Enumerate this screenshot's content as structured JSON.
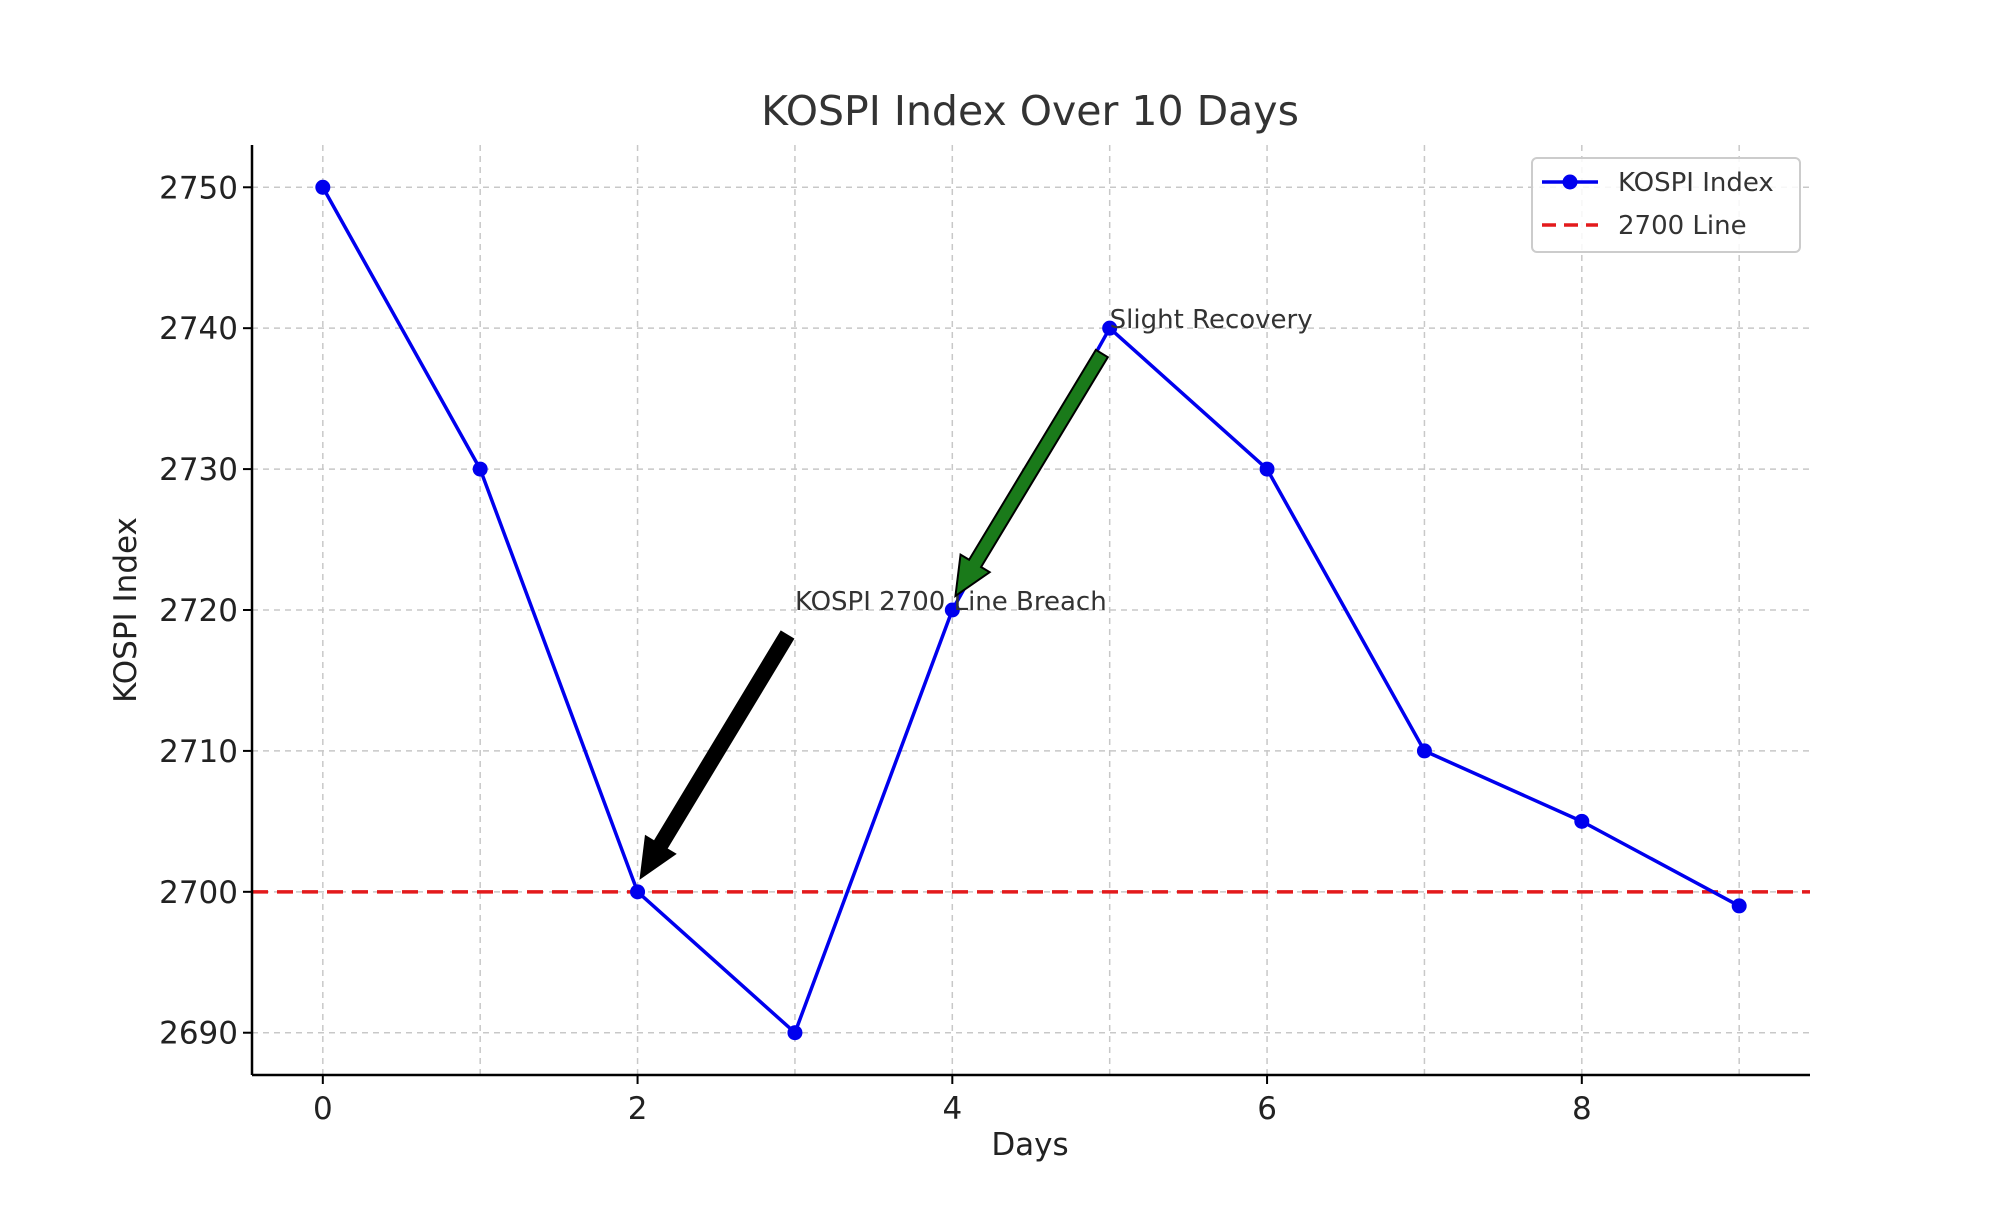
{
  "chart_data": {
    "type": "line",
    "title": "KOSPI Index Over 10 Days",
    "xlabel": "Days",
    "ylabel": "KOSPI Index",
    "x": [
      0,
      1,
      2,
      3,
      4,
      5,
      6,
      7,
      8,
      9
    ],
    "series": [
      {
        "name": "KOSPI Index",
        "values": [
          2750,
          2730,
          2700,
          2690,
          2720,
          2740,
          2730,
          2710,
          2705,
          2699
        ],
        "color": "#0000ee",
        "style": "solid",
        "marker": "circle"
      }
    ],
    "reference_lines": [
      {
        "name": "2700 Line",
        "y": 2700,
        "color": "#e31a1c",
        "style": "dashed"
      }
    ],
    "xlim": [
      -0.45,
      9.45
    ],
    "ylim": [
      2687,
      2753
    ],
    "xticks": [
      "0",
      "2",
      "4",
      "6",
      "8"
    ],
    "xtick_values": [
      0,
      2,
      4,
      6,
      8
    ],
    "yticks": [
      "2690",
      "2700",
      "2710",
      "2720",
      "2730",
      "2740",
      "2750"
    ],
    "ytick_values": [
      2690,
      2700,
      2710,
      2720,
      2730,
      2740,
      2750
    ],
    "grid": true,
    "legend": {
      "placement": "top-right",
      "entries": [
        "KOSPI Index",
        "2700 Line"
      ]
    },
    "annotations": [
      {
        "text": "KOSPI 2700 Line Breach",
        "text_x": 3,
        "text_y": 2720,
        "arrow_from": [
          2.95,
          2718.2
        ],
        "arrow_to": [
          2.02,
          2701
        ],
        "arrow_color": "#000000"
      },
      {
        "text": "Slight Recovery",
        "text_x": 5,
        "text_y": 2740,
        "arrow_from": [
          4.95,
          2738.2
        ],
        "arrow_to": [
          4.02,
          2721
        ],
        "arrow_color": "#1a7a1a"
      }
    ]
  }
}
